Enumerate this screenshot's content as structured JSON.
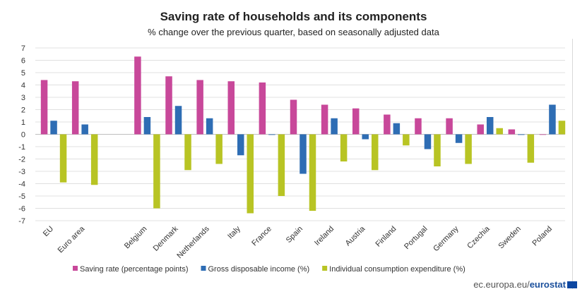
{
  "chart_data": {
    "type": "bar",
    "title": "Saving rate of households and its components",
    "subtitle": "% change over the previous quarter, based on seasonally adjusted data",
    "categories": [
      "EU",
      "Euro area",
      "",
      "Belgium",
      "Denmark",
      "Netherlands",
      "Italy",
      "France",
      "Spain",
      "Ireland",
      "Austria",
      "Finland",
      "Portugal",
      "Germany",
      "Czechia",
      "Sweden",
      "Poland"
    ],
    "series": [
      {
        "name": "Saving rate (percentage points)",
        "color": "#c8489a",
        "values": [
          4.4,
          4.3,
          null,
          6.3,
          4.7,
          4.4,
          4.3,
          4.2,
          2.8,
          2.4,
          2.1,
          1.6,
          1.3,
          1.3,
          0.8,
          0.4,
          0.0
        ]
      },
      {
        "name": "Gross disposable income (%)",
        "color": "#2e6db4",
        "values": [
          1.1,
          0.8,
          null,
          1.4,
          2.3,
          1.3,
          -1.7,
          -0.05,
          -3.2,
          1.3,
          -0.4,
          0.9,
          -1.2,
          -0.7,
          1.4,
          -0.05,
          2.4
        ]
      },
      {
        "name": "Individual consumption expenditure (%)",
        "color": "#b8c424",
        "values": [
          -3.9,
          -4.1,
          null,
          -6.0,
          -2.9,
          -2.4,
          -6.4,
          -5.0,
          -6.2,
          -2.2,
          -2.9,
          -0.9,
          -2.6,
          -2.4,
          0.5,
          -2.3,
          1.1
        ]
      }
    ],
    "ylim": [
      -7,
      7
    ],
    "yticks": [
      7,
      6,
      5,
      4,
      3,
      2,
      1,
      0,
      -1,
      -2,
      -3,
      -4,
      -5,
      -6,
      -7
    ],
    "grid": true,
    "legend_placement": "bottom"
  },
  "footer": {
    "site": "ec.europa.eu/",
    "brand": "eurostat"
  }
}
